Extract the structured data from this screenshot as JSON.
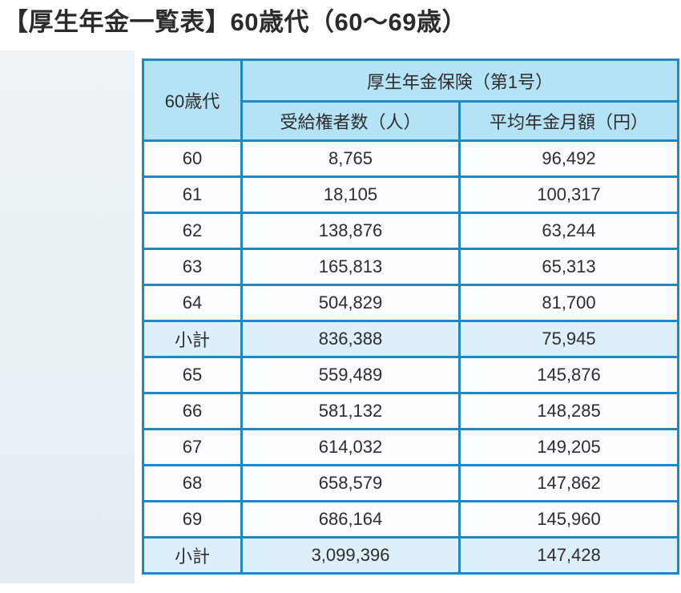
{
  "title": "【厚生年金一覧表】60歳代（60～69歳）",
  "colors": {
    "border_blue": "#1e88c2",
    "header_bg": "#b5e3f6",
    "subtotal_bg": "#dceffa",
    "row_bg": "#fbfcfd",
    "title_text": "#2b2b2b",
    "cell_text": "#2d2d2d",
    "side_panel_bg": "#e8f0f4"
  },
  "table": {
    "corner_header": "60歳代",
    "group_header": "厚生年金保険（第1号）",
    "col_headers": [
      "受給権者数（人）",
      "平均年金月額（円）"
    ],
    "rows": [
      {
        "age": "60",
        "recipients": "8,765",
        "avg_monthly_amount": "96,492",
        "subtotal": false
      },
      {
        "age": "61",
        "recipients": "18,105",
        "avg_monthly_amount": "100,317",
        "subtotal": false
      },
      {
        "age": "62",
        "recipients": "138,876",
        "avg_monthly_amount": "63,244",
        "subtotal": false
      },
      {
        "age": "63",
        "recipients": "165,813",
        "avg_monthly_amount": "65,313",
        "subtotal": false
      },
      {
        "age": "64",
        "recipients": "504,829",
        "avg_monthly_amount": "81,700",
        "subtotal": false
      },
      {
        "age": "小計",
        "recipients": "836,388",
        "avg_monthly_amount": "75,945",
        "subtotal": true
      },
      {
        "age": "65",
        "recipients": "559,489",
        "avg_monthly_amount": "145,876",
        "subtotal": false
      },
      {
        "age": "66",
        "recipients": "581,132",
        "avg_monthly_amount": "148,285",
        "subtotal": false
      },
      {
        "age": "67",
        "recipients": "614,032",
        "avg_monthly_amount": "149,205",
        "subtotal": false
      },
      {
        "age": "68",
        "recipients": "658,579",
        "avg_monthly_amount": "147,862",
        "subtotal": false
      },
      {
        "age": "69",
        "recipients": "686,164",
        "avg_monthly_amount": "145,960",
        "subtotal": false
      },
      {
        "age": "小計",
        "recipients": "3,099,396",
        "avg_monthly_amount": "147,428",
        "subtotal": true
      }
    ]
  }
}
